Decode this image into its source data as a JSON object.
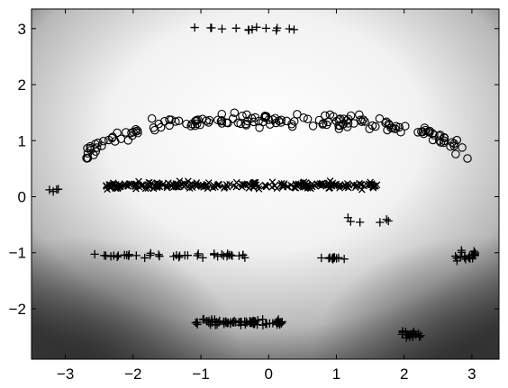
{
  "chart_data": {
    "type": "scatter",
    "title": "",
    "xlabel": "",
    "ylabel": "",
    "xlim": [
      -3.5,
      3.4
    ],
    "ylim": [
      -2.9,
      3.35
    ],
    "x_ticks": [
      -3,
      -2,
      -1,
      0,
      1,
      2,
      3
    ],
    "y_ticks": [
      -2,
      -1,
      0,
      1,
      2,
      3
    ],
    "x_tick_labels": [
      "−3",
      "−2",
      "−1",
      "0",
      "1",
      "2",
      "3"
    ],
    "y_tick_labels": [
      "−2",
      "−1",
      "0",
      "1",
      "2",
      "3"
    ],
    "grid": false,
    "background": "grayscale decision-value map (dark at edges, light near center)",
    "markers": {
      "circle": "o",
      "cross": "x",
      "plus": "+"
    },
    "clusters": [
      {
        "marker": "circle",
        "shape": "arc",
        "x_range": [
          -2.7,
          2.95
        ],
        "y_center": 1.35,
        "y_spread": 0.12,
        "end_drop": 0.6,
        "count": 170
      },
      {
        "marker": "cross",
        "shape": "band",
        "x_range": [
          -2.4,
          1.6
        ],
        "y_center": 0.2,
        "y_spread": 0.1,
        "count": 230
      },
      {
        "marker": "plus",
        "shape": "band",
        "x_range": [
          -1.2,
          0.4
        ],
        "y_center": 3.0,
        "y_spread": 0.04,
        "count": 14
      },
      {
        "marker": "plus",
        "shape": "band",
        "x_range": [
          -3.25,
          -3.05
        ],
        "y_center": 0.12,
        "y_spread": 0.04,
        "count": 4
      },
      {
        "marker": "plus",
        "shape": "band",
        "x_range": [
          1.15,
          1.8
        ],
        "y_center": -0.45,
        "y_spread": 0.12,
        "count": 6
      },
      {
        "marker": "plus",
        "shape": "band",
        "x_range": [
          -2.6,
          -0.3
        ],
        "y_center": -1.05,
        "y_spread": 0.06,
        "count": 40
      },
      {
        "marker": "plus",
        "shape": "band",
        "x_range": [
          0.75,
          1.15
        ],
        "y_center": -1.1,
        "y_spread": 0.04,
        "count": 14
      },
      {
        "marker": "plus",
        "shape": "blob",
        "x_range": [
          2.65,
          3.05
        ],
        "y_center": -1.05,
        "y_spread": 0.15,
        "count": 20
      },
      {
        "marker": "plus",
        "shape": "band",
        "x_range": [
          -1.1,
          0.2
        ],
        "y_center": -2.25,
        "y_spread": 0.08,
        "count": 80
      },
      {
        "marker": "plus",
        "shape": "blob",
        "x_range": [
          1.95,
          2.25
        ],
        "y_center": -2.45,
        "y_spread": 0.1,
        "count": 20
      }
    ]
  }
}
